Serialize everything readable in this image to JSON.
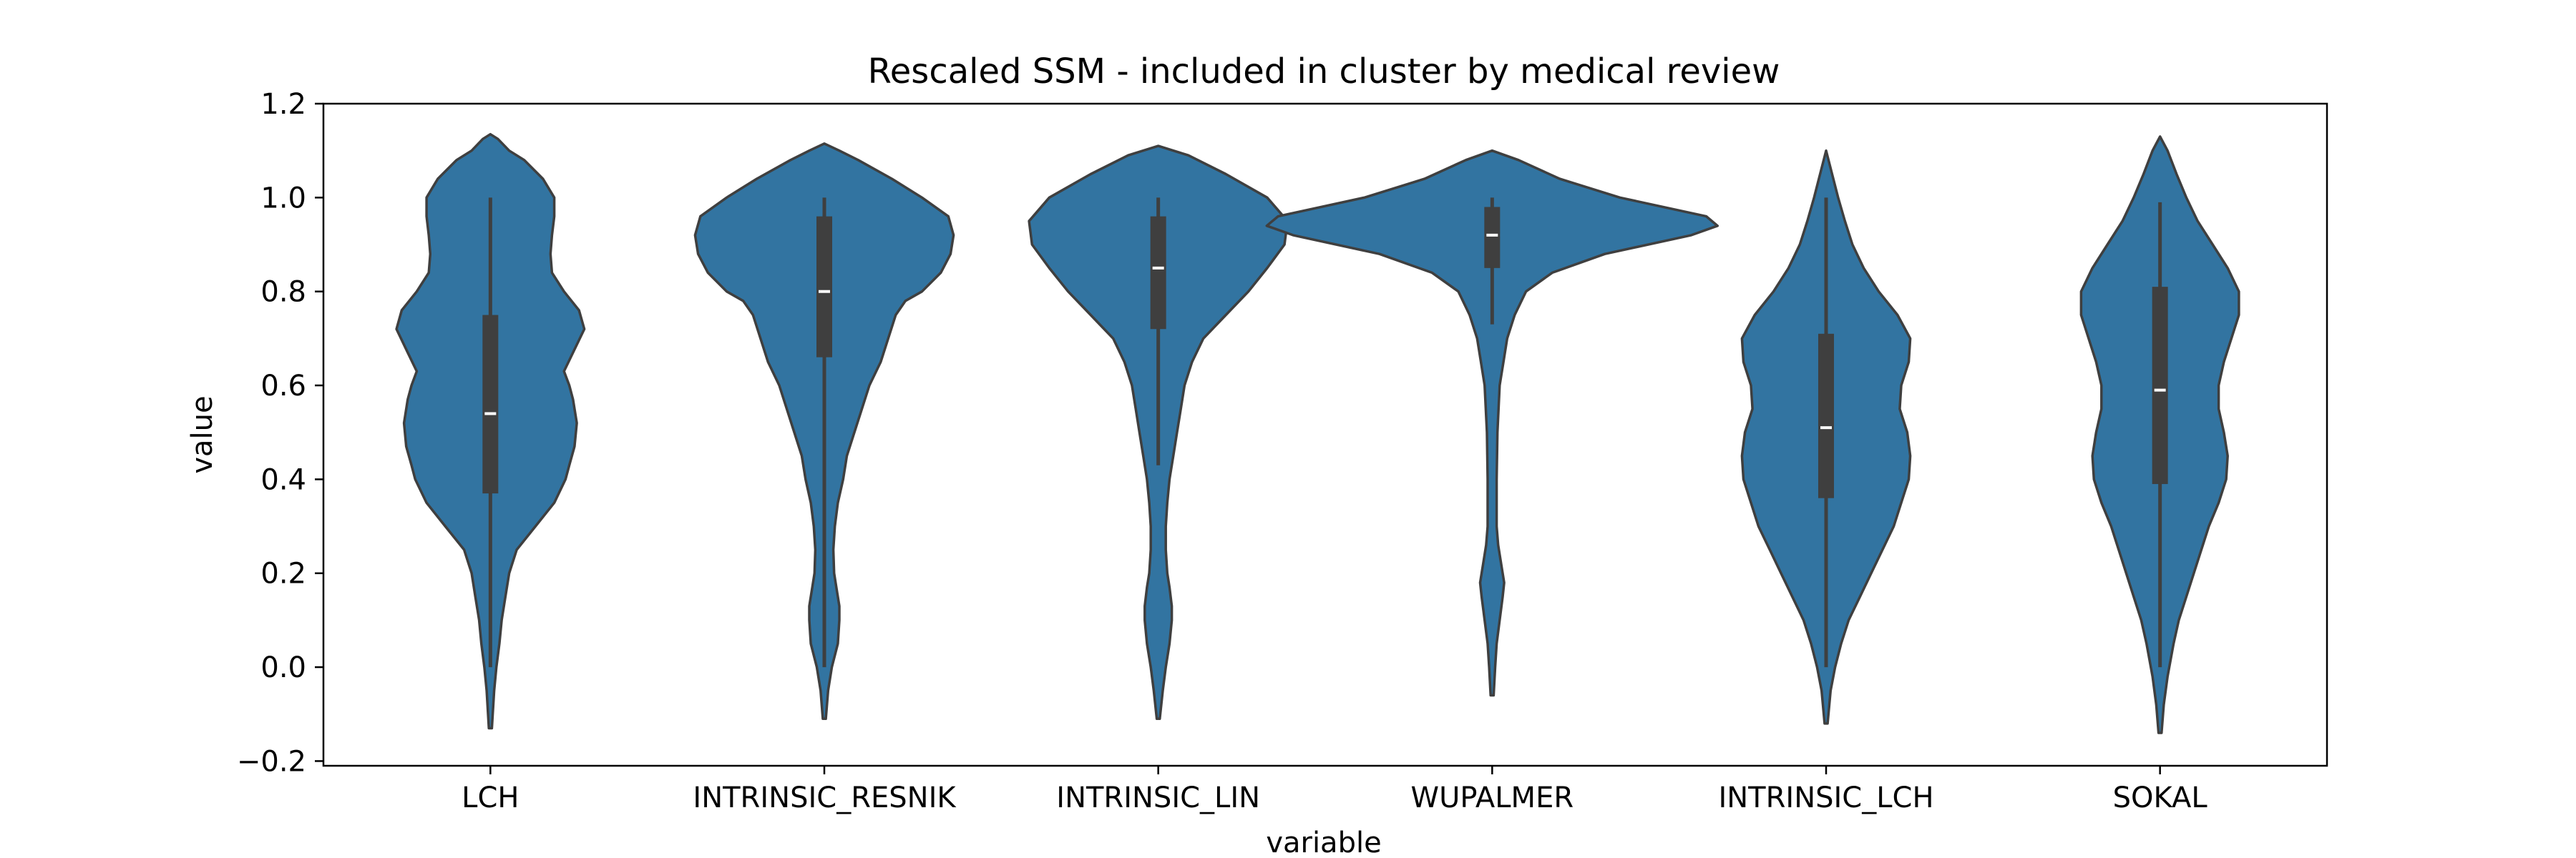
{
  "chart_data": {
    "type": "violin",
    "title": "Rescaled SSM - included in cluster by medical review",
    "xlabel": "variable",
    "ylabel": "value",
    "ylim": [
      -0.21,
      1.2
    ],
    "yticks": [
      -0.2,
      0.0,
      0.2,
      0.4,
      0.6,
      0.8,
      1.0,
      1.2
    ],
    "ytick_labels": [
      "−0.2",
      "0.0",
      "0.2",
      "0.4",
      "0.6",
      "0.8",
      "1.0",
      "1.2"
    ],
    "grid": false,
    "categories": [
      "LCH",
      "INTRINSIC_RESNIK",
      "INTRINSIC_LIN",
      "WUPALMER",
      "INTRINSIC_LCH",
      "SOKAL"
    ],
    "violins": [
      {
        "name": "LCH",
        "whisker": [
          0.0,
          1.0
        ],
        "q1": 0.37,
        "median": 0.54,
        "q3": 0.75,
        "density": [
          [
            -0.13,
            0.002
          ],
          [
            -0.05,
            0.005
          ],
          [
            0.0,
            0.008
          ],
          [
            0.05,
            0.012
          ],
          [
            0.1,
            0.015
          ],
          [
            0.15,
            0.02
          ],
          [
            0.2,
            0.025
          ],
          [
            0.25,
            0.035
          ],
          [
            0.3,
            0.06
          ],
          [
            0.35,
            0.085
          ],
          [
            0.4,
            0.1
          ],
          [
            0.43,
            0.105
          ],
          [
            0.47,
            0.112
          ],
          [
            0.52,
            0.115
          ],
          [
            0.57,
            0.11
          ],
          [
            0.6,
            0.105
          ],
          [
            0.63,
            0.098
          ],
          [
            0.67,
            0.11
          ],
          [
            0.72,
            0.125
          ],
          [
            0.76,
            0.118
          ],
          [
            0.8,
            0.098
          ],
          [
            0.84,
            0.082
          ],
          [
            0.88,
            0.08
          ],
          [
            0.92,
            0.082
          ],
          [
            0.96,
            0.085
          ],
          [
            1.0,
            0.085
          ],
          [
            1.04,
            0.07
          ],
          [
            1.08,
            0.045
          ],
          [
            1.1,
            0.025
          ],
          [
            1.125,
            0.01
          ],
          [
            1.135,
            0.0
          ]
        ]
      },
      {
        "name": "INTRINSIC_RESNIK",
        "whisker": [
          0.0,
          1.0
        ],
        "q1": 0.66,
        "median": 0.8,
        "q3": 0.96,
        "density": [
          [
            -0.11,
            0.002
          ],
          [
            -0.05,
            0.005
          ],
          [
            0.0,
            0.01
          ],
          [
            0.05,
            0.018
          ],
          [
            0.1,
            0.02
          ],
          [
            0.13,
            0.02
          ],
          [
            0.17,
            0.016
          ],
          [
            0.2,
            0.013
          ],
          [
            0.25,
            0.012
          ],
          [
            0.3,
            0.014
          ],
          [
            0.35,
            0.018
          ],
          [
            0.4,
            0.025
          ],
          [
            0.45,
            0.03
          ],
          [
            0.5,
            0.04
          ],
          [
            0.55,
            0.05
          ],
          [
            0.6,
            0.06
          ],
          [
            0.65,
            0.075
          ],
          [
            0.7,
            0.085
          ],
          [
            0.75,
            0.095
          ],
          [
            0.78,
            0.108
          ],
          [
            0.8,
            0.13
          ],
          [
            0.84,
            0.155
          ],
          [
            0.88,
            0.168
          ],
          [
            0.92,
            0.172
          ],
          [
            0.96,
            0.165
          ],
          [
            1.0,
            0.13
          ],
          [
            1.04,
            0.09
          ],
          [
            1.08,
            0.045
          ],
          [
            1.1,
            0.02
          ],
          [
            1.115,
            0.0
          ]
        ]
      },
      {
        "name": "INTRINSIC_LIN",
        "whisker": [
          0.43,
          1.0
        ],
        "q1": 0.72,
        "median": 0.85,
        "q3": 0.96,
        "density": [
          [
            -0.11,
            0.002
          ],
          [
            -0.05,
            0.006
          ],
          [
            0.0,
            0.01
          ],
          [
            0.05,
            0.015
          ],
          [
            0.1,
            0.018
          ],
          [
            0.13,
            0.018
          ],
          [
            0.17,
            0.015
          ],
          [
            0.2,
            0.012
          ],
          [
            0.25,
            0.01
          ],
          [
            0.3,
            0.01
          ],
          [
            0.35,
            0.012
          ],
          [
            0.4,
            0.015
          ],
          [
            0.45,
            0.02
          ],
          [
            0.5,
            0.025
          ],
          [
            0.55,
            0.03
          ],
          [
            0.6,
            0.035
          ],
          [
            0.65,
            0.045
          ],
          [
            0.7,
            0.06
          ],
          [
            0.75,
            0.09
          ],
          [
            0.8,
            0.12
          ],
          [
            0.85,
            0.145
          ],
          [
            0.9,
            0.168
          ],
          [
            0.95,
            0.172
          ],
          [
            1.0,
            0.145
          ],
          [
            1.05,
            0.09
          ],
          [
            1.09,
            0.04
          ],
          [
            1.11,
            0.0
          ]
        ]
      },
      {
        "name": "WUPALMER",
        "whisker": [
          0.73,
          1.0
        ],
        "q1": 0.85,
        "median": 0.92,
        "q3": 0.98,
        "density": [
          [
            -0.06,
            0.002
          ],
          [
            0.0,
            0.004
          ],
          [
            0.05,
            0.006
          ],
          [
            0.1,
            0.01
          ],
          [
            0.15,
            0.014
          ],
          [
            0.18,
            0.016
          ],
          [
            0.22,
            0.012
          ],
          [
            0.26,
            0.008
          ],
          [
            0.3,
            0.006
          ],
          [
            0.4,
            0.006
          ],
          [
            0.5,
            0.007
          ],
          [
            0.6,
            0.01
          ],
          [
            0.65,
            0.015
          ],
          [
            0.7,
            0.02
          ],
          [
            0.75,
            0.03
          ],
          [
            0.8,
            0.045
          ],
          [
            0.84,
            0.08
          ],
          [
            0.88,
            0.15
          ],
          [
            0.92,
            0.265
          ],
          [
            0.94,
            0.3
          ],
          [
            0.96,
            0.285
          ],
          [
            1.0,
            0.17
          ],
          [
            1.04,
            0.09
          ],
          [
            1.08,
            0.035
          ],
          [
            1.1,
            0.0
          ]
        ]
      },
      {
        "name": "INTRINSIC_LCH",
        "whisker": [
          0.0,
          1.0
        ],
        "q1": 0.36,
        "median": 0.51,
        "q3": 0.71,
        "density": [
          [
            -0.12,
            0.002
          ],
          [
            -0.05,
            0.006
          ],
          [
            0.0,
            0.012
          ],
          [
            0.05,
            0.02
          ],
          [
            0.1,
            0.03
          ],
          [
            0.15,
            0.045
          ],
          [
            0.2,
            0.06
          ],
          [
            0.25,
            0.075
          ],
          [
            0.3,
            0.09
          ],
          [
            0.35,
            0.1
          ],
          [
            0.4,
            0.11
          ],
          [
            0.45,
            0.112
          ],
          [
            0.5,
            0.108
          ],
          [
            0.55,
            0.098
          ],
          [
            0.6,
            0.1
          ],
          [
            0.65,
            0.11
          ],
          [
            0.7,
            0.112
          ],
          [
            0.75,
            0.095
          ],
          [
            0.8,
            0.07
          ],
          [
            0.85,
            0.05
          ],
          [
            0.9,
            0.035
          ],
          [
            0.95,
            0.025
          ],
          [
            1.0,
            0.016
          ],
          [
            1.05,
            0.008
          ],
          [
            1.1,
            0.0
          ]
        ]
      },
      {
        "name": "SOKAL",
        "whisker": [
          0.0,
          0.99
        ],
        "q1": 0.39,
        "median": 0.59,
        "q3": 0.81,
        "density": [
          [
            -0.14,
            0.002
          ],
          [
            -0.08,
            0.005
          ],
          [
            -0.02,
            0.01
          ],
          [
            0.05,
            0.018
          ],
          [
            0.1,
            0.025
          ],
          [
            0.15,
            0.035
          ],
          [
            0.2,
            0.045
          ],
          [
            0.25,
            0.055
          ],
          [
            0.3,
            0.065
          ],
          [
            0.35,
            0.078
          ],
          [
            0.4,
            0.088
          ],
          [
            0.45,
            0.09
          ],
          [
            0.5,
            0.085
          ],
          [
            0.55,
            0.078
          ],
          [
            0.6,
            0.078
          ],
          [
            0.65,
            0.085
          ],
          [
            0.7,
            0.095
          ],
          [
            0.75,
            0.105
          ],
          [
            0.8,
            0.105
          ],
          [
            0.85,
            0.09
          ],
          [
            0.9,
            0.07
          ],
          [
            0.95,
            0.05
          ],
          [
            1.0,
            0.035
          ],
          [
            1.05,
            0.022
          ],
          [
            1.1,
            0.01
          ],
          [
            1.13,
            0.0
          ]
        ]
      }
    ],
    "colors": {
      "violin_fill": "#3274a1",
      "violin_edge": "#3f3f3f",
      "box": "#3f3f3f",
      "median": "#ffffff",
      "axes": "#000000"
    }
  }
}
